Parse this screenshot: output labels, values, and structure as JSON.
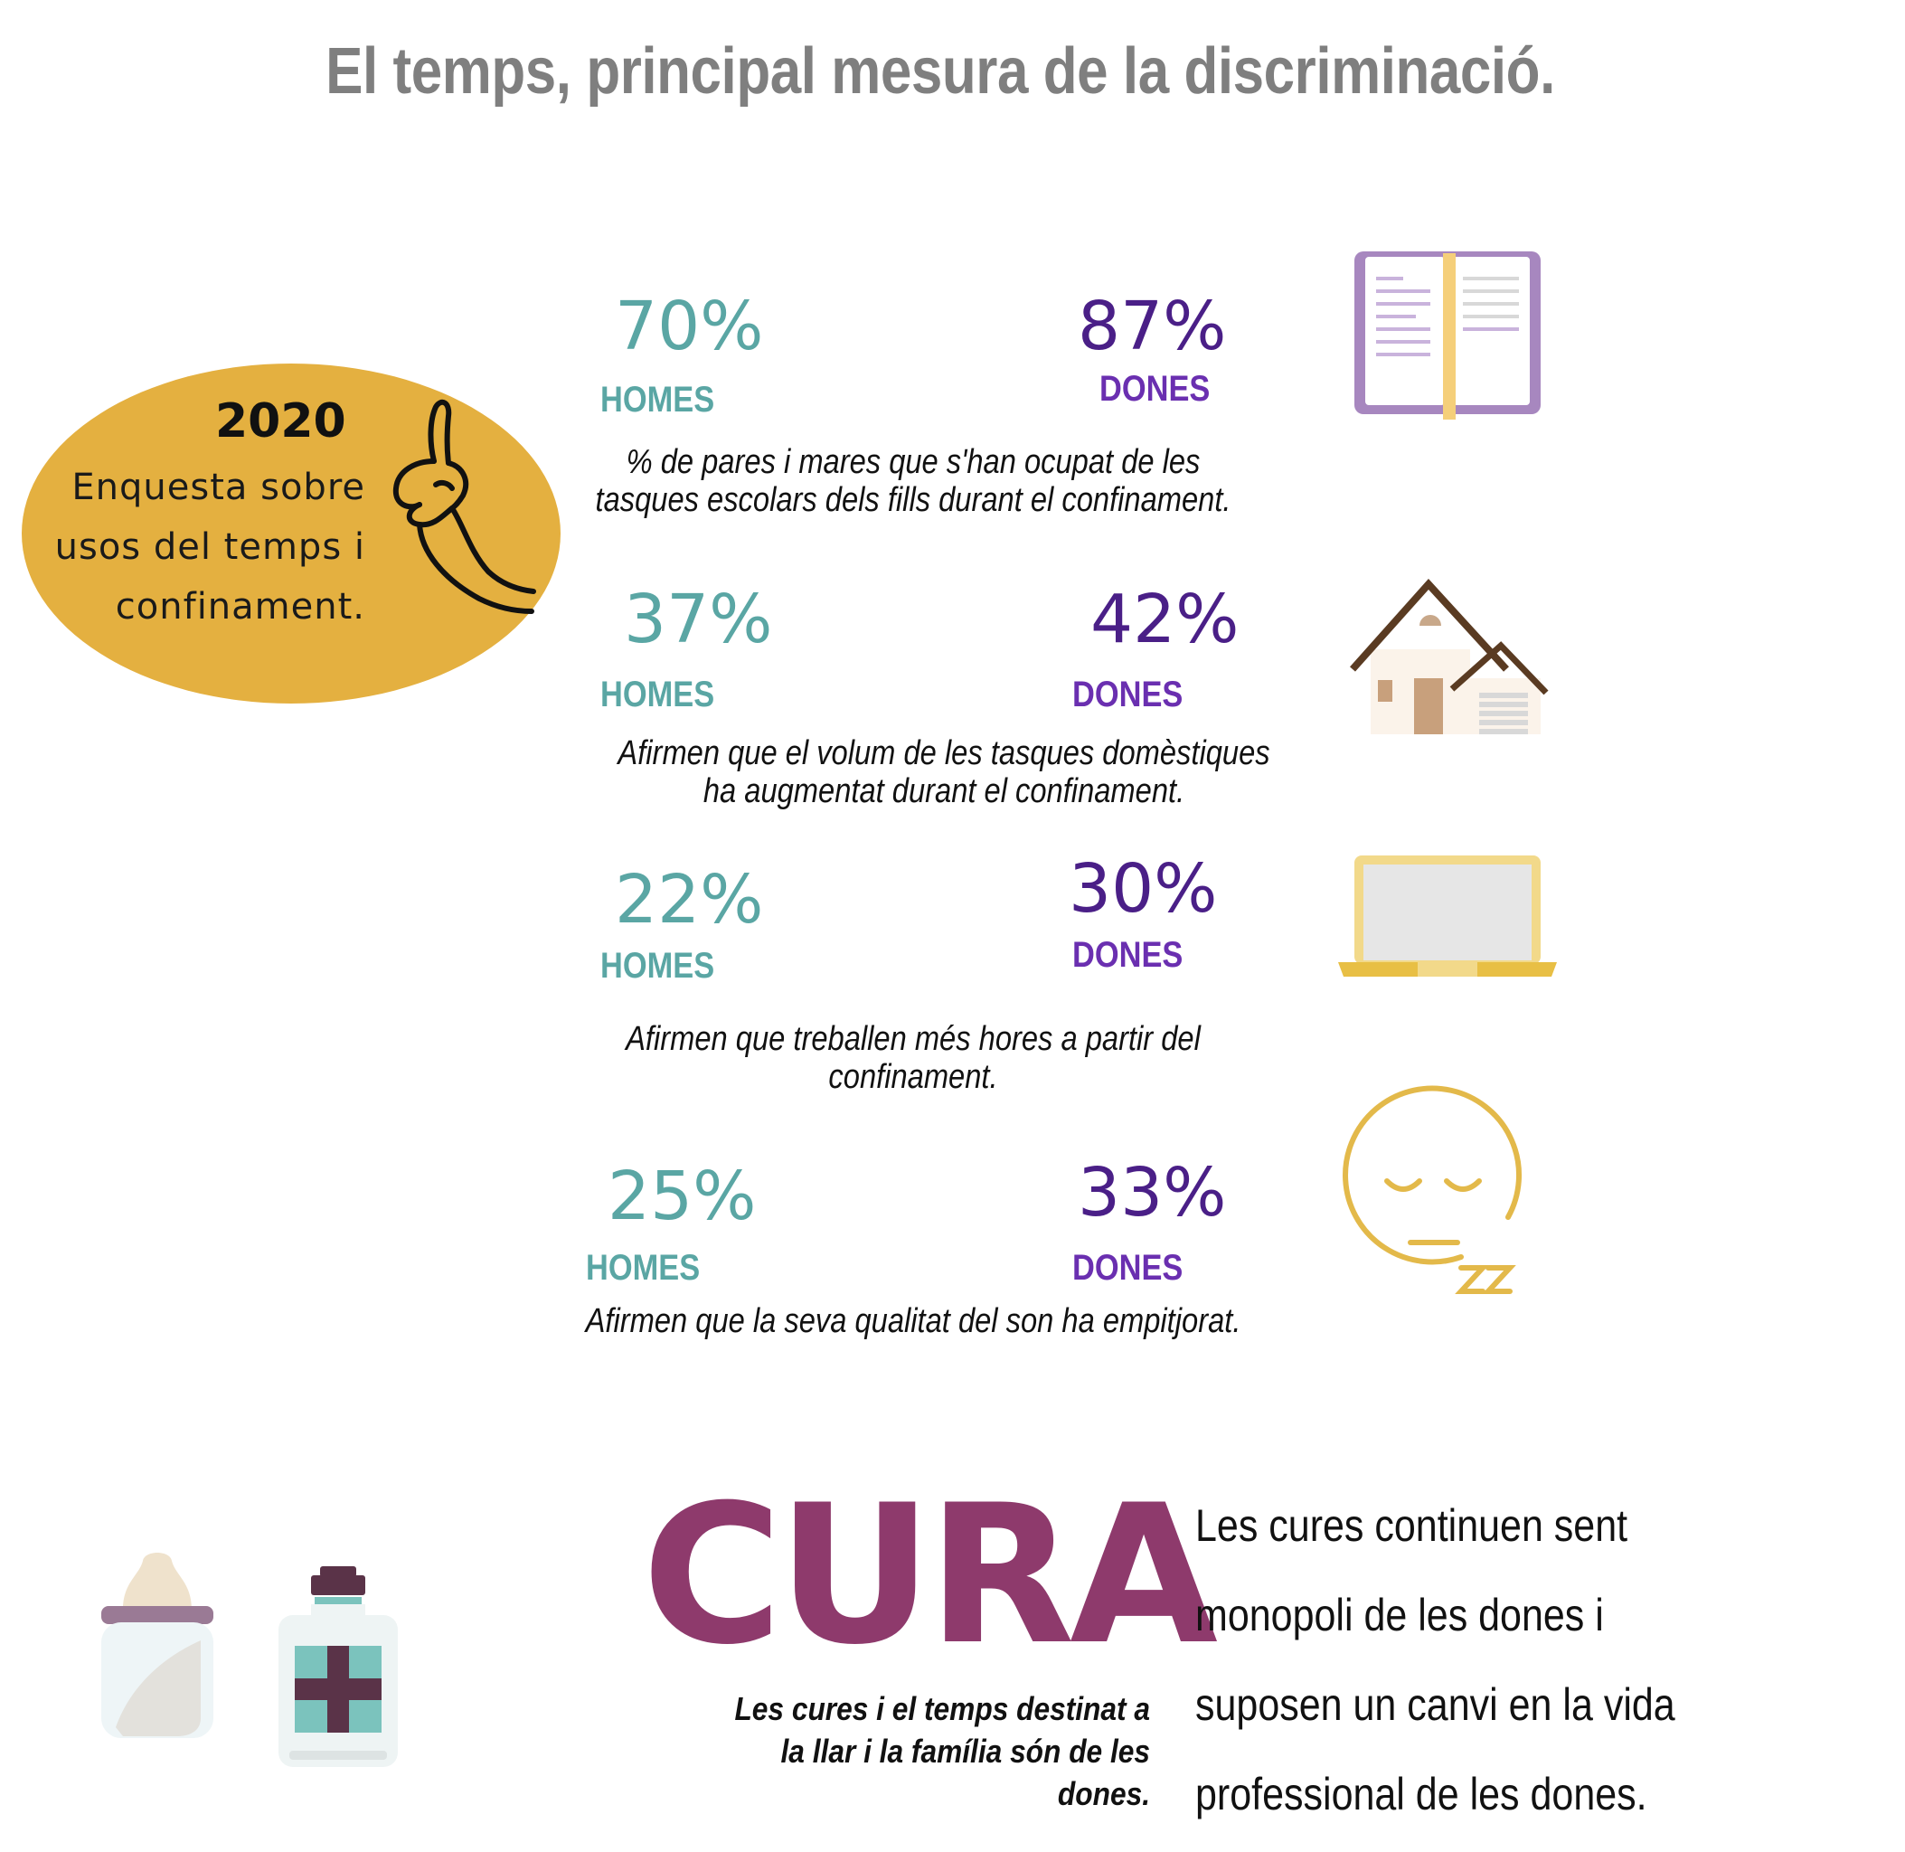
{
  "title": "El temps, principal mesura de la discriminació.",
  "survey": {
    "year": "2020",
    "lines": [
      "Enquesta sobre",
      "usos del temps i",
      "confinament."
    ]
  },
  "stats": [
    {
      "men_pct": "70%",
      "men_label": "HOMES",
      "women_pct": "87%",
      "women_label": "DONES",
      "desc": [
        "% de pares i mares que s'han ocupat de les",
        "tasques escolars dels fills durant el confinament."
      ],
      "icon": "book-icon"
    },
    {
      "men_pct": "37%",
      "men_label": "HOMES",
      "women_pct": "42%",
      "women_label": "DONES",
      "desc": [
        "Afirmen que el volum de les tasques domèstiques",
        "ha augmentat durant el confinament."
      ],
      "icon": "house-icon"
    },
    {
      "men_pct": "22%",
      "men_label": "HOMES",
      "women_pct": "30%",
      "women_label": "DONES",
      "desc": [
        "Afirmen que treballen més hores a partir del",
        "confinament."
      ],
      "icon": "laptop-icon"
    },
    {
      "men_pct": "25%",
      "men_label": "HOMES",
      "women_pct": "33%",
      "women_label": "DONES",
      "desc": [
        "Afirmen que la seva qualitat del son ha empitjorat."
      ],
      "icon": "sleeping-face-icon"
    }
  ],
  "care": {
    "heading": "CURA",
    "note": [
      "Les cures i el temps destinat a",
      "la llar i la família  són de les",
      "dones."
    ],
    "side": [
      "Les cures continuen sent",
      "monopoli de les dones i",
      "suposen un canvi en la vida",
      "professional de les dones."
    ]
  },
  "colors": {
    "men": "#5aa6a4",
    "women_pct": "#4a1f87",
    "women_label": "#6a2fb0",
    "oval": "#e4b040",
    "cura": "#8e3a6c",
    "title": "#7f7f7f"
  }
}
